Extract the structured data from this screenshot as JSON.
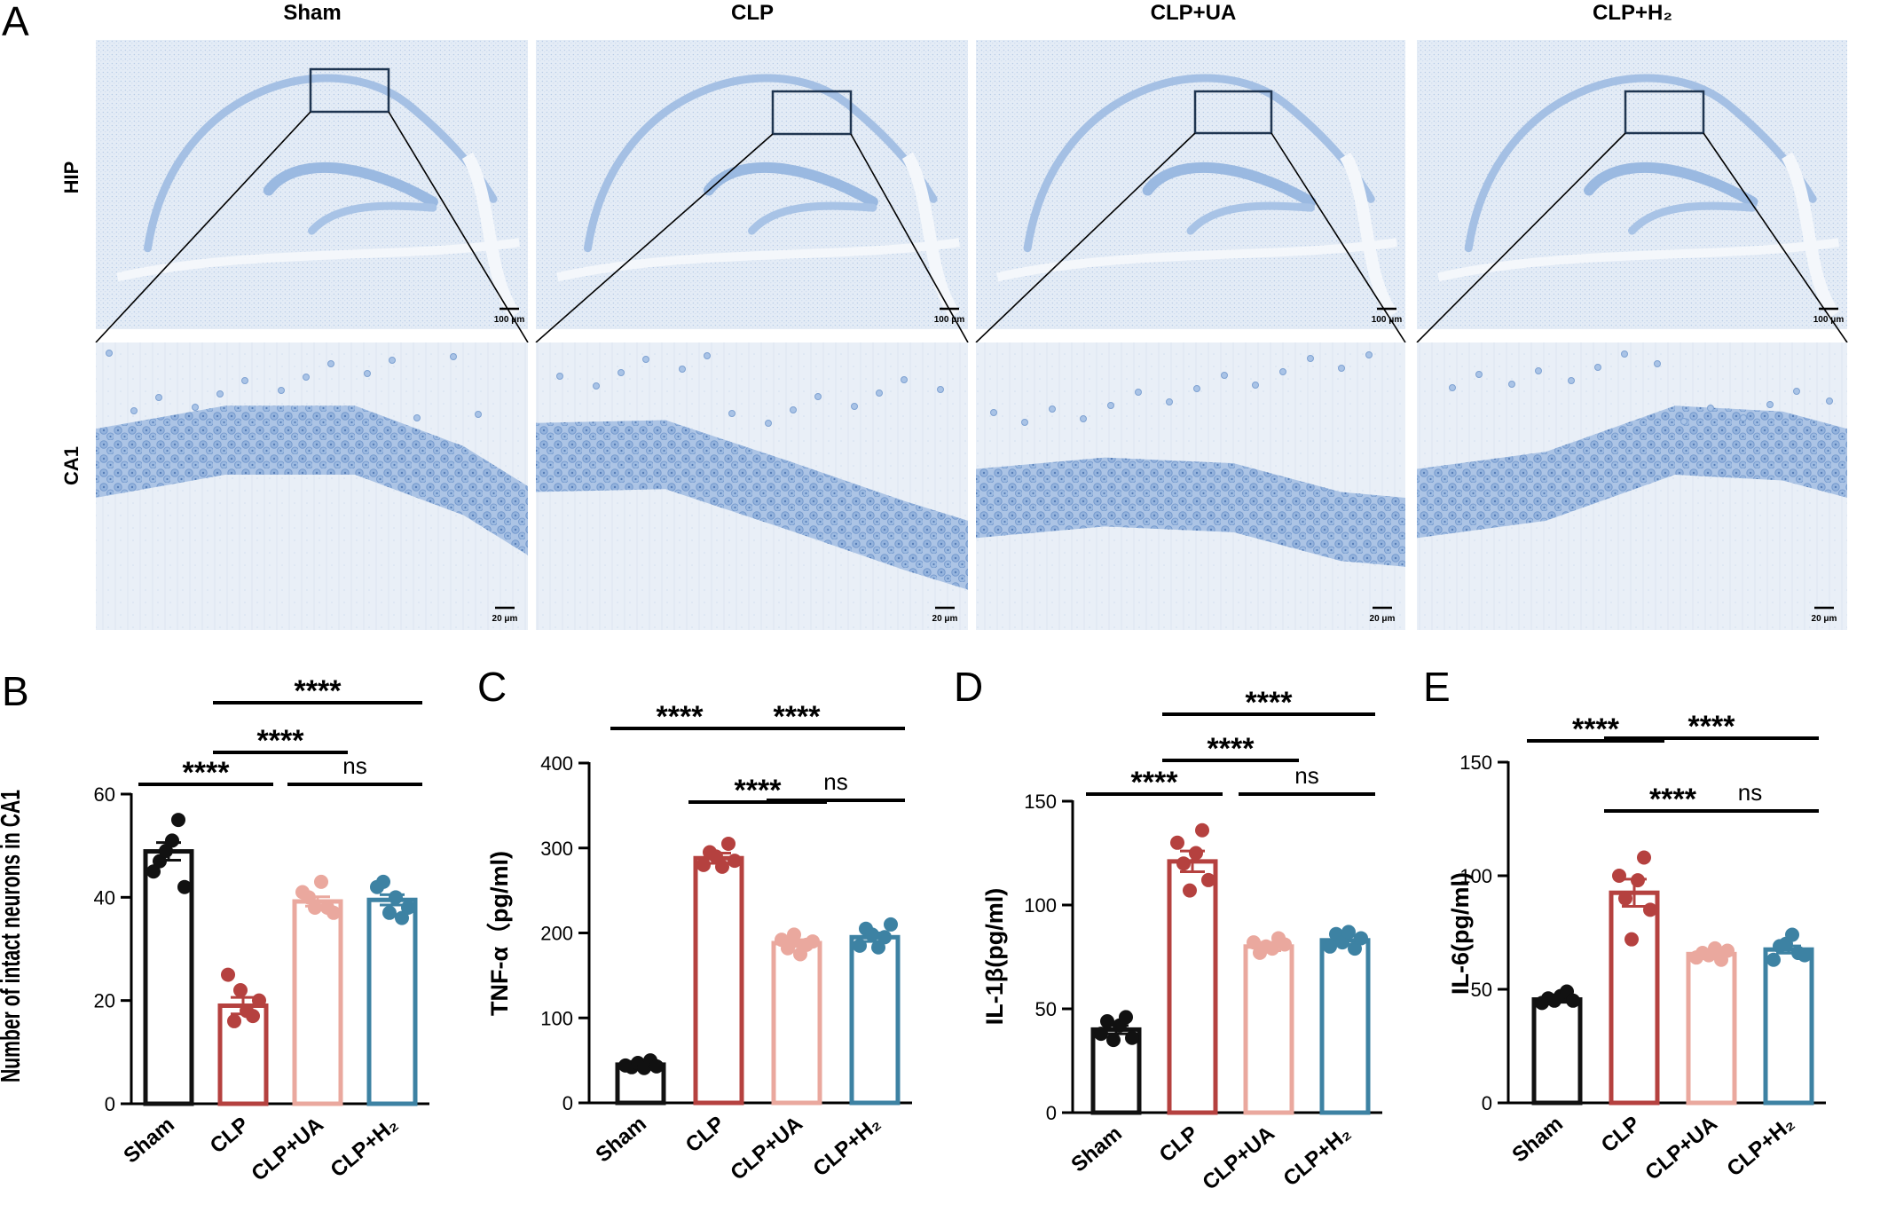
{
  "panel_a": {
    "letter": "A",
    "columns": [
      "Sham",
      "CLP",
      "CLP+UA",
      "CLP+H₂"
    ],
    "rows": [
      "HIP",
      "CA1"
    ],
    "scalebars": {
      "hip": "100 μm",
      "ca1": "20 μm"
    }
  },
  "colors": {
    "Sham": "#111111",
    "CLP": "#b5413f",
    "CLP+UA": "#eaa89e",
    "CLP+H2": "#3d82a3",
    "tissue_bg": "#e6eef7",
    "tissue_stain": "#7ea6d6"
  },
  "chart_data": [
    {
      "panel": "B",
      "type": "bar",
      "categories": [
        "Sham",
        "CLP",
        "CLP+UA",
        "CLP+H₂"
      ],
      "values": [
        48.9,
        19.0,
        39.2,
        39.5
      ],
      "sem": [
        1.7,
        1.6,
        0.9,
        1.0
      ],
      "points": [
        [
          45,
          47,
          49,
          51,
          55,
          42
        ],
        [
          25,
          16,
          22,
          18,
          17,
          20
        ],
        [
          41,
          40,
          38,
          43,
          38,
          37
        ],
        [
          42,
          43,
          37,
          40,
          36,
          38
        ]
      ],
      "ylabel": "Number of intact neurons in CA1",
      "ylim": [
        0,
        60
      ],
      "yticks": [
        0,
        20,
        40,
        60
      ],
      "significance": [
        {
          "from": 0,
          "to": 1,
          "label": "****"
        },
        {
          "from": 1,
          "to": 2,
          "label": "****"
        },
        {
          "from": 1,
          "to": 3,
          "label": "****"
        },
        {
          "from": 2,
          "to": 3,
          "label": "ns"
        }
      ]
    },
    {
      "panel": "C",
      "type": "bar",
      "categories": [
        "Sham",
        "CLP",
        "CLP+UA",
        "CLP+H₂"
      ],
      "values": [
        45,
        288,
        188,
        195
      ],
      "sem": [
        3,
        6,
        4,
        5
      ],
      "points": [
        [
          44,
          42,
          47,
          41,
          50,
          43
        ],
        [
          280,
          295,
          290,
          278,
          305,
          285
        ],
        [
          192,
          182,
          198,
          175,
          186,
          190
        ],
        [
          185,
          205,
          198,
          183,
          195,
          210
        ]
      ],
      "ylabel": "TNF-α（pg/ml)",
      "ylim": [
        0,
        400
      ],
      "yticks": [
        0,
        100,
        200,
        300,
        400
      ],
      "significance": [
        {
          "from": 0,
          "to": 1,
          "label": "****"
        },
        {
          "from": 1,
          "to": 3,
          "label": "****"
        },
        {
          "from": 1,
          "to": 2,
          "label": "****"
        },
        {
          "from": 2,
          "to": 3,
          "label": "ns"
        }
      ]
    },
    {
      "panel": "D",
      "type": "bar",
      "categories": [
        "Sham",
        "CLP",
        "CLP+UA",
        "CLP+H₂"
      ],
      "values": [
        40,
        121,
        80,
        83
      ],
      "sem": [
        2,
        5,
        2,
        2
      ],
      "points": [
        [
          38,
          44,
          35,
          42,
          46,
          36
        ],
        [
          130,
          120,
          107,
          125,
          136,
          112
        ],
        [
          82,
          77,
          80,
          79,
          84,
          81
        ],
        [
          80,
          86,
          82,
          87,
          79,
          84
        ]
      ],
      "ylabel": "IL-1β(pg/ml)",
      "ylim": [
        0,
        150
      ],
      "yticks": [
        0,
        50,
        100,
        150
      ],
      "significance": [
        {
          "from": 0,
          "to": 1,
          "label": "****"
        },
        {
          "from": 1,
          "to": 2,
          "label": "****"
        },
        {
          "from": 1,
          "to": 3,
          "label": "****"
        },
        {
          "from": 2,
          "to": 3,
          "label": "ns"
        }
      ]
    },
    {
      "panel": "E",
      "type": "bar",
      "categories": [
        "Sham",
        "CLP",
        "CLP+UA",
        "CLP+H₂"
      ],
      "values": [
        45.5,
        92.5,
        65.5,
        67.5
      ],
      "sem": [
        1.2,
        6,
        1.4,
        1.6
      ],
      "points": [
        [
          44,
          46,
          45,
          47,
          49,
          45
        ],
        [
          100,
          90,
          72,
          98,
          108,
          85
        ],
        [
          64,
          66,
          65,
          68,
          63,
          67
        ],
        [
          63,
          69,
          70,
          74,
          66,
          65
        ]
      ],
      "ylabel": "IL-6(pg/ml)",
      "ylim": [
        0,
        150
      ],
      "yticks": [
        0,
        50,
        100,
        150
      ],
      "significance": [
        {
          "from": 0,
          "to": 1,
          "label": "****"
        },
        {
          "from": 1,
          "to": 3,
          "label": "****"
        },
        {
          "from": 1,
          "to": 2,
          "label": "****"
        },
        {
          "from": 2,
          "to": 3,
          "label": "ns"
        }
      ]
    }
  ]
}
